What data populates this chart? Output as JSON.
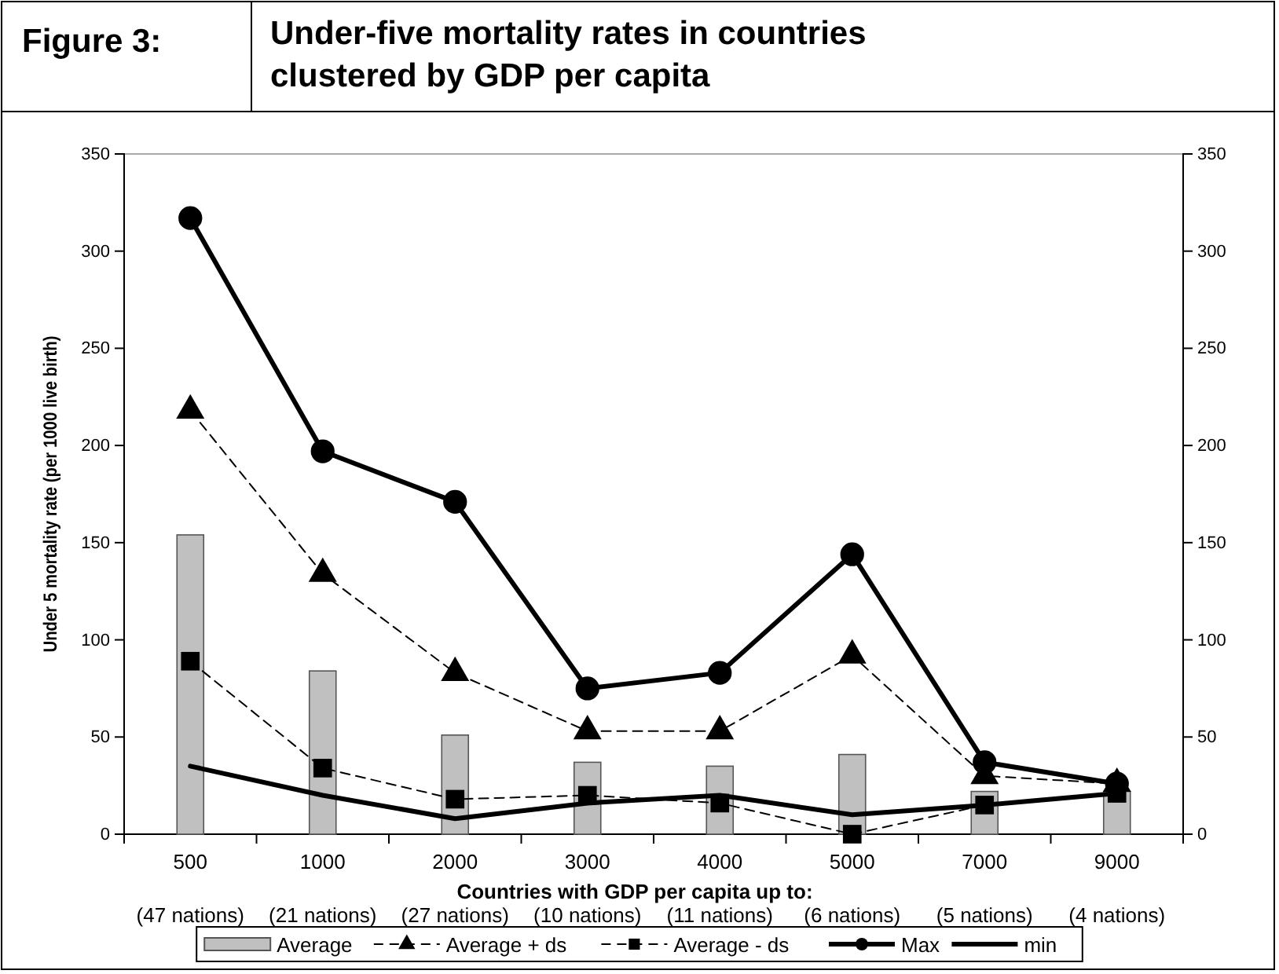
{
  "chart_data": {
    "type": "bar",
    "title": "Under-five mortality rates in countries clustered by GDP per capita",
    "xlabel": "Countries with GDP per capita up to:",
    "ylabel": "Under 5 mortality rate (per 1000 live birth)",
    "categories": [
      "500",
      "1000",
      "2000",
      "3000",
      "4000",
      "5000",
      "7000",
      "9000"
    ],
    "series": [
      {
        "name": "Average",
        "color": "#c0c0c0",
        "values": [
          154,
          84,
          51,
          37,
          35,
          41,
          22,
          22
        ]
      },
      {
        "name": "Average + ds",
        "type": "line",
        "color": "#000000",
        "marker": "triangle",
        "line_style": "dashed",
        "values": [
          218,
          134,
          83,
          53,
          53,
          92,
          30,
          26
        ]
      },
      {
        "name": "Average - ds",
        "type": "line",
        "color": "#000000",
        "marker": "square",
        "line_style": "dashed",
        "values": [
          89,
          34,
          18,
          20,
          16,
          0,
          15,
          21
        ]
      },
      {
        "name": "Max",
        "type": "line",
        "color": "#000000",
        "marker": "circle",
        "line_style": "solid",
        "values": [
          317,
          197,
          171,
          75,
          83,
          144,
          37,
          26
        ]
      },
      {
        "name": "min",
        "type": "line",
        "color": "#000000",
        "marker": "none",
        "line_style": "solid",
        "values": [
          35,
          20,
          8,
          16,
          20,
          10,
          15,
          21
        ]
      }
    ],
    "ylim": [
      0,
      350
    ],
    "yticks": [
      0,
      50,
      100,
      150,
      200,
      250,
      300,
      350
    ],
    "y2lim": [
      0,
      350
    ],
    "y2ticks": [
      0,
      50,
      100,
      150,
      200,
      250,
      300,
      350
    ],
    "grid": false,
    "legend": "bottom",
    "annotations": [
      "Figure 3:",
      "(47 nations)",
      "(21 nations)",
      "(27 nations)",
      "(10 nations)",
      "(11 nations)",
      "(6 nations)",
      "(5 nations)",
      "(4 nations)"
    ]
  }
}
